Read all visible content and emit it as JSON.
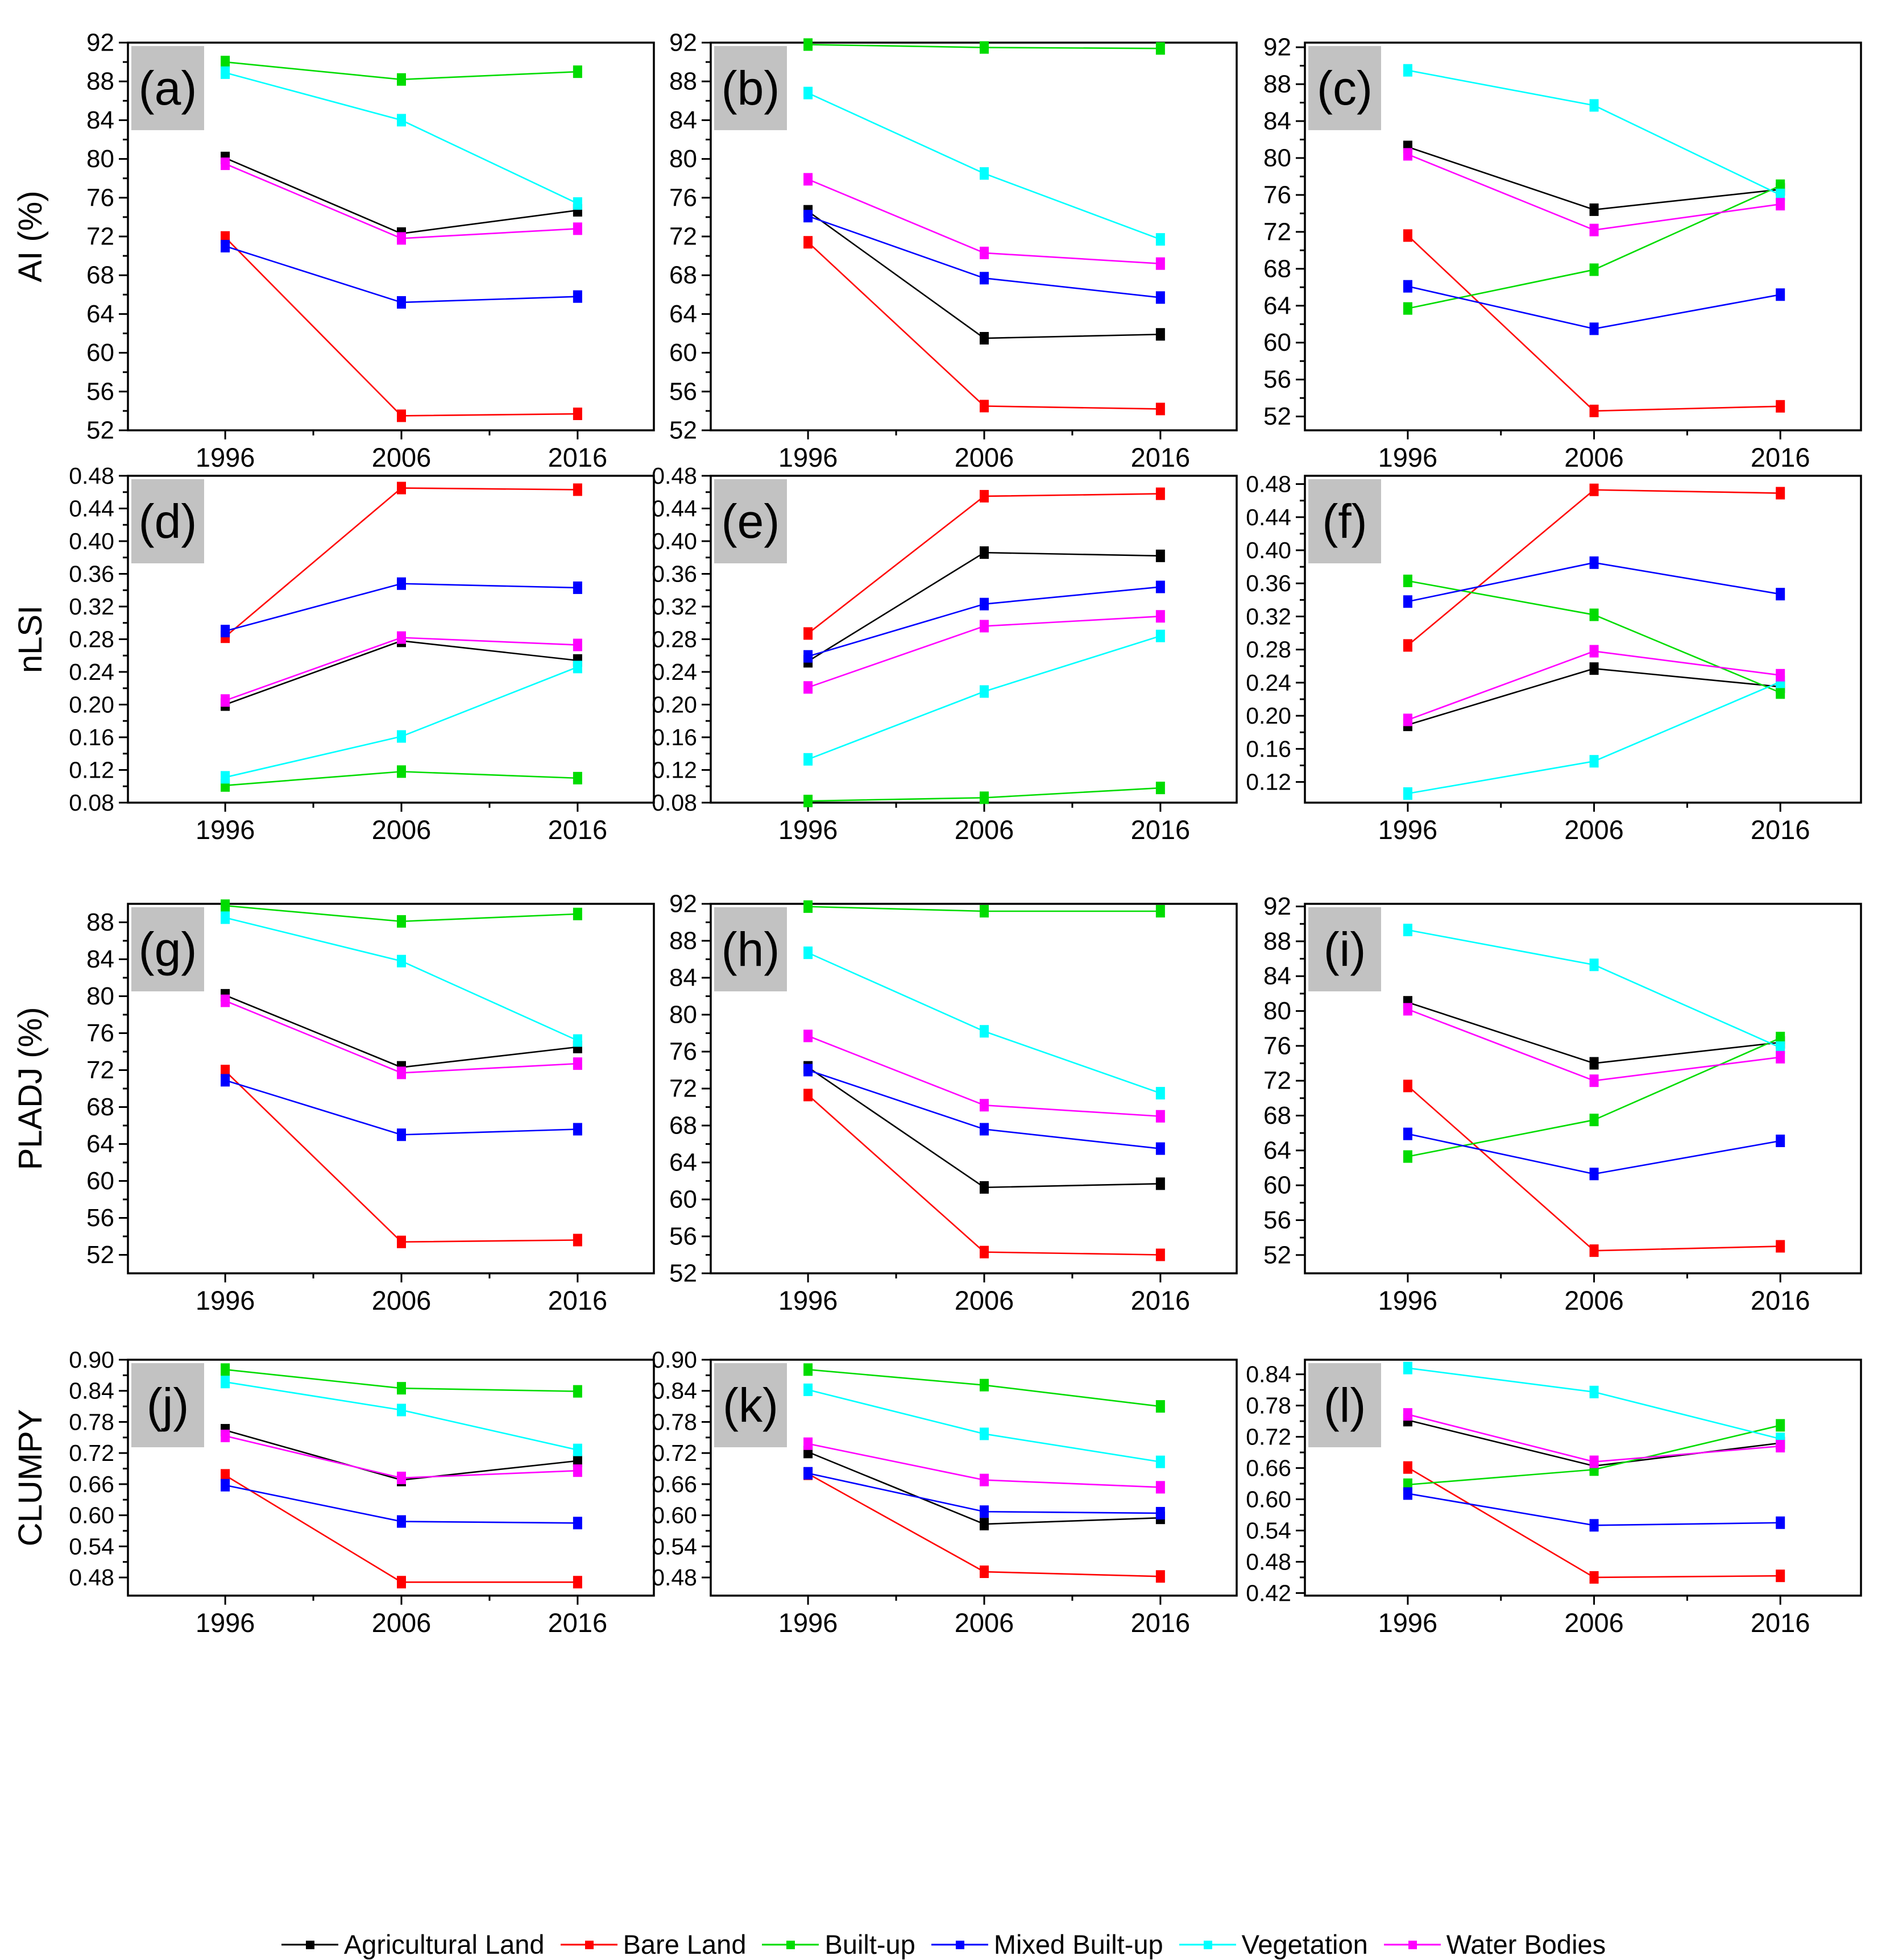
{
  "figure": {
    "x_categories": [
      "1996",
      "2006",
      "2016"
    ],
    "row_ylabels": [
      "AI (%)",
      "nLSI",
      "PLADJ (%)",
      "CLUMPY"
    ]
  },
  "legend": {
    "position": "bottom",
    "items": [
      {
        "label": "Agricultural Land",
        "color": "#000000"
      },
      {
        "label": "Bare Land",
        "color": "#FF0000"
      },
      {
        "label": "Built-up",
        "color": "#00DC00"
      },
      {
        "label": "Mixed Built-up",
        "color": "#0000FF"
      },
      {
        "label": "Vegetation",
        "color": "#00FFFF"
      },
      {
        "label": "Water Bodies",
        "color": "#FF00FF"
      }
    ]
  },
  "chart_data": [
    {
      "id": "a",
      "type": "line",
      "panel_label": "(a)",
      "ylabel": "AI (%)",
      "xlabel": "",
      "x": [
        "1996",
        "2006",
        "2016"
      ],
      "ylim": [
        52,
        92
      ],
      "decimals": 0,
      "yticks": [
        52,
        56,
        60,
        64,
        68,
        72,
        76,
        80,
        84,
        88,
        92
      ],
      "series": [
        {
          "name": "Agricultural Land",
          "values": [
            80.1,
            72.3,
            74.7
          ]
        },
        {
          "name": "Bare Land",
          "values": [
            71.9,
            53.5,
            53.7
          ]
        },
        {
          "name": "Built-up",
          "values": [
            90.0,
            88.2,
            89.0
          ]
        },
        {
          "name": "Mixed Built-up",
          "values": [
            71.0,
            65.2,
            65.8
          ]
        },
        {
          "name": "Vegetation",
          "values": [
            88.9,
            84.0,
            75.4
          ]
        },
        {
          "name": "Water Bodies",
          "values": [
            79.5,
            71.8,
            72.8
          ]
        }
      ]
    },
    {
      "id": "b",
      "type": "line",
      "panel_label": "(b)",
      "ylabel": "",
      "xlabel": "",
      "x": [
        "1996",
        "2006",
        "2016"
      ],
      "ylim": [
        52,
        92
      ],
      "decimals": 0,
      "yticks": [
        52,
        56,
        60,
        64,
        68,
        72,
        76,
        80,
        84,
        88,
        92
      ],
      "series": [
        {
          "name": "Agricultural Land",
          "values": [
            74.6,
            61.5,
            61.9
          ]
        },
        {
          "name": "Bare Land",
          "values": [
            71.4,
            54.5,
            54.2
          ]
        },
        {
          "name": "Built-up",
          "values": [
            91.8,
            91.5,
            91.4
          ]
        },
        {
          "name": "Mixed Built-up",
          "values": [
            74.1,
            67.7,
            65.7
          ]
        },
        {
          "name": "Vegetation",
          "values": [
            86.8,
            78.5,
            71.7
          ]
        },
        {
          "name": "Water Bodies",
          "values": [
            77.9,
            70.3,
            69.2
          ]
        }
      ]
    },
    {
      "id": "c",
      "type": "line",
      "panel_label": "(c)",
      "ylabel": "",
      "xlabel": "",
      "x": [
        "1996",
        "2006",
        "2016"
      ],
      "ylim": [
        50.5,
        92.5
      ],
      "decimals": 0,
      "yticks": [
        52,
        56,
        60,
        64,
        68,
        72,
        76,
        80,
        84,
        88,
        92
      ],
      "series": [
        {
          "name": "Agricultural Land",
          "values": [
            81.2,
            74.4,
            76.6
          ]
        },
        {
          "name": "Bare Land",
          "values": [
            71.6,
            52.6,
            53.1
          ]
        },
        {
          "name": "Built-up",
          "values": [
            63.7,
            67.9,
            77.0
          ]
        },
        {
          "name": "Mixed Built-up",
          "values": [
            66.1,
            61.5,
            65.2
          ]
        },
        {
          "name": "Vegetation",
          "values": [
            89.5,
            85.7,
            76.0
          ]
        },
        {
          "name": "Water Bodies",
          "values": [
            80.4,
            72.2,
            75.0
          ]
        }
      ]
    },
    {
      "id": "d",
      "type": "line",
      "panel_label": "(d)",
      "ylabel": "nLSI",
      "xlabel": "",
      "x": [
        "1996",
        "2006",
        "2016"
      ],
      "ylim": [
        0.08,
        0.48
      ],
      "decimals": 2,
      "yticks": [
        0.08,
        0.12,
        0.16,
        0.2,
        0.24,
        0.28,
        0.32,
        0.36,
        0.4,
        0.44,
        0.48
      ],
      "series": [
        {
          "name": "Agricultural Land",
          "values": [
            0.2,
            0.278,
            0.254
          ]
        },
        {
          "name": "Bare Land",
          "values": [
            0.283,
            0.465,
            0.463
          ]
        },
        {
          "name": "Built-up",
          "values": [
            0.101,
            0.118,
            0.11
          ]
        },
        {
          "name": "Mixed Built-up",
          "values": [
            0.29,
            0.348,
            0.343
          ]
        },
        {
          "name": "Vegetation",
          "values": [
            0.111,
            0.161,
            0.246
          ]
        },
        {
          "name": "Water Bodies",
          "values": [
            0.205,
            0.282,
            0.273
          ]
        }
      ]
    },
    {
      "id": "e",
      "type": "line",
      "panel_label": "(e)",
      "ylabel": "",
      "xlabel": "",
      "x": [
        "1996",
        "2006",
        "2016"
      ],
      "ylim": [
        0.08,
        0.48
      ],
      "decimals": 2,
      "yticks": [
        0.08,
        0.12,
        0.16,
        0.2,
        0.24,
        0.28,
        0.32,
        0.36,
        0.4,
        0.44,
        0.48
      ],
      "series": [
        {
          "name": "Agricultural Land",
          "values": [
            0.253,
            0.386,
            0.382
          ]
        },
        {
          "name": "Bare Land",
          "values": [
            0.287,
            0.455,
            0.458
          ]
        },
        {
          "name": "Built-up",
          "values": [
            0.082,
            0.086,
            0.098
          ]
        },
        {
          "name": "Mixed Built-up",
          "values": [
            0.259,
            0.323,
            0.344
          ]
        },
        {
          "name": "Vegetation",
          "values": [
            0.133,
            0.216,
            0.284
          ]
        },
        {
          "name": "Water Bodies",
          "values": [
            0.221,
            0.296,
            0.308
          ]
        }
      ]
    },
    {
      "id": "f",
      "type": "line",
      "panel_label": "(f)",
      "ylabel": "",
      "xlabel": "",
      "x": [
        "1996",
        "2006",
        "2016"
      ],
      "ylim": [
        0.095,
        0.49
      ],
      "decimals": 2,
      "yticks": [
        0.12,
        0.16,
        0.2,
        0.24,
        0.28,
        0.32,
        0.36,
        0.4,
        0.44,
        0.48
      ],
      "series": [
        {
          "name": "Agricultural Land",
          "values": [
            0.189,
            0.257,
            0.235
          ]
        },
        {
          "name": "Bare Land",
          "values": [
            0.285,
            0.473,
            0.469
          ]
        },
        {
          "name": "Built-up",
          "values": [
            0.363,
            0.322,
            0.228
          ]
        },
        {
          "name": "Mixed Built-up",
          "values": [
            0.338,
            0.385,
            0.347
          ]
        },
        {
          "name": "Vegetation",
          "values": [
            0.106,
            0.145,
            0.241
          ]
        },
        {
          "name": "Water Bodies",
          "values": [
            0.195,
            0.278,
            0.249
          ]
        }
      ]
    },
    {
      "id": "g",
      "type": "line",
      "panel_label": "(g)",
      "ylabel": "PLADJ (%)",
      "xlabel": "",
      "x": [
        "1996",
        "2006",
        "2016"
      ],
      "ylim": [
        50,
        90
      ],
      "decimals": 0,
      "yticks": [
        52,
        56,
        60,
        64,
        68,
        72,
        76,
        80,
        84,
        88
      ],
      "series": [
        {
          "name": "Agricultural Land",
          "values": [
            80.1,
            72.3,
            74.5
          ]
        },
        {
          "name": "Bare Land",
          "values": [
            71.9,
            53.4,
            53.6
          ]
        },
        {
          "name": "Built-up",
          "values": [
            89.8,
            88.1,
            88.9
          ]
        },
        {
          "name": "Mixed Built-up",
          "values": [
            70.9,
            65.0,
            65.6
          ]
        },
        {
          "name": "Vegetation",
          "values": [
            88.5,
            83.8,
            75.2
          ]
        },
        {
          "name": "Water Bodies",
          "values": [
            79.5,
            71.7,
            72.7
          ]
        }
      ]
    },
    {
      "id": "h",
      "type": "line",
      "panel_label": "(h)",
      "ylabel": "",
      "xlabel": "",
      "x": [
        "1996",
        "2006",
        "2016"
      ],
      "ylim": [
        52,
        92
      ],
      "decimals": 0,
      "yticks": [
        52,
        56,
        60,
        64,
        68,
        72,
        76,
        80,
        84,
        88,
        92
      ],
      "series": [
        {
          "name": "Agricultural Land",
          "values": [
            74.3,
            61.3,
            61.7
          ]
        },
        {
          "name": "Bare Land",
          "values": [
            71.3,
            54.3,
            54.0
          ]
        },
        {
          "name": "Built-up",
          "values": [
            91.7,
            91.2,
            91.2
          ]
        },
        {
          "name": "Mixed Built-up",
          "values": [
            74.0,
            67.6,
            65.5
          ]
        },
        {
          "name": "Vegetation",
          "values": [
            86.7,
            78.2,
            71.5
          ]
        },
        {
          "name": "Water Bodies",
          "values": [
            77.7,
            70.2,
            69.0
          ]
        }
      ]
    },
    {
      "id": "i",
      "type": "line",
      "panel_label": "(i)",
      "ylabel": "",
      "xlabel": "",
      "x": [
        "1996",
        "2006",
        "2016"
      ],
      "ylim": [
        49.9,
        92.3
      ],
      "decimals": 0,
      "yticks": [
        52,
        56,
        60,
        64,
        68,
        72,
        76,
        80,
        84,
        88,
        92
      ],
      "series": [
        {
          "name": "Agricultural Land",
          "values": [
            81.0,
            74.0,
            76.4
          ]
        },
        {
          "name": "Bare Land",
          "values": [
            71.4,
            52.5,
            53.0
          ]
        },
        {
          "name": "Built-up",
          "values": [
            63.3,
            67.5,
            76.9
          ]
        },
        {
          "name": "Mixed Built-up",
          "values": [
            65.9,
            61.3,
            65.1
          ]
        },
        {
          "name": "Vegetation",
          "values": [
            89.3,
            85.3,
            75.8
          ]
        },
        {
          "name": "Water Bodies",
          "values": [
            80.2,
            72.0,
            74.7
          ]
        }
      ]
    },
    {
      "id": "j",
      "type": "line",
      "panel_label": "(j)",
      "ylabel": "CLUMPY",
      "xlabel": "",
      "x": [
        "1996",
        "2006",
        "2016"
      ],
      "ylim": [
        0.445,
        0.9
      ],
      "decimals": 2,
      "yticks": [
        0.48,
        0.54,
        0.6,
        0.66,
        0.72,
        0.78,
        0.84,
        0.9
      ],
      "series": [
        {
          "name": "Agricultural Land",
          "values": [
            0.764,
            0.668,
            0.705
          ]
        },
        {
          "name": "Bare Land",
          "values": [
            0.677,
            0.471,
            0.471
          ]
        },
        {
          "name": "Built-up",
          "values": [
            0.881,
            0.845,
            0.839
          ]
        },
        {
          "name": "Mixed Built-up",
          "values": [
            0.658,
            0.588,
            0.585
          ]
        },
        {
          "name": "Vegetation",
          "values": [
            0.857,
            0.803,
            0.726
          ]
        },
        {
          "name": "Water Bodies",
          "values": [
            0.753,
            0.672,
            0.686
          ]
        }
      ]
    },
    {
      "id": "k",
      "type": "line",
      "panel_label": "(k)",
      "ylabel": "",
      "xlabel": "",
      "x": [
        "1996",
        "2006",
        "2016"
      ],
      "ylim": [
        0.445,
        0.9
      ],
      "decimals": 2,
      "yticks": [
        0.48,
        0.54,
        0.6,
        0.66,
        0.72,
        0.78,
        0.84,
        0.9
      ],
      "series": [
        {
          "name": "Agricultural Land",
          "values": [
            0.722,
            0.583,
            0.595
          ]
        },
        {
          "name": "Bare Land",
          "values": [
            0.68,
            0.491,
            0.482
          ]
        },
        {
          "name": "Built-up",
          "values": [
            0.881,
            0.851,
            0.81
          ]
        },
        {
          "name": "Mixed Built-up",
          "values": [
            0.681,
            0.607,
            0.604
          ]
        },
        {
          "name": "Vegetation",
          "values": [
            0.842,
            0.757,
            0.703
          ]
        },
        {
          "name": "Water Bodies",
          "values": [
            0.738,
            0.668,
            0.654
          ]
        }
      ]
    },
    {
      "id": "l",
      "type": "line",
      "panel_label": "(l)",
      "ylabel": "",
      "xlabel": "",
      "x": [
        "1996",
        "2006",
        "2016"
      ],
      "ylim": [
        0.415,
        0.868
      ],
      "decimals": 2,
      "yticks": [
        0.42,
        0.48,
        0.54,
        0.6,
        0.66,
        0.72,
        0.78,
        0.84
      ],
      "series": [
        {
          "name": "Agricultural Land",
          "values": [
            0.752,
            0.664,
            0.708
          ]
        },
        {
          "name": "Bare Land",
          "values": [
            0.661,
            0.45,
            0.453
          ]
        },
        {
          "name": "Built-up",
          "values": [
            0.628,
            0.657,
            0.742
          ]
        },
        {
          "name": "Mixed Built-up",
          "values": [
            0.611,
            0.55,
            0.555
          ]
        },
        {
          "name": "Vegetation",
          "values": [
            0.852,
            0.806,
            0.716
          ]
        },
        {
          "name": "Water Bodies",
          "values": [
            0.763,
            0.672,
            0.702
          ]
        }
      ]
    }
  ]
}
